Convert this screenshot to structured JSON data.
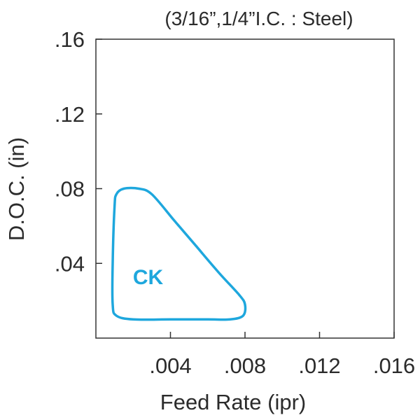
{
  "chart_data": {
    "type": "area",
    "title": "(3/16”,1/4”I.C. : Steel)",
    "xlabel": "Feed Rate (ipr)",
    "ylabel": "D.O.C. (in)",
    "xlim": [
      0,
      0.016
    ],
    "ylim": [
      0,
      0.16
    ],
    "x_ticks": [
      {
        "value": 0.004,
        "label": ".004"
      },
      {
        "value": 0.008,
        "label": ".008"
      },
      {
        "value": 0.012,
        "label": ".012"
      },
      {
        "value": 0.016,
        "label": ".016"
      }
    ],
    "y_ticks": [
      {
        "value": 0.04,
        "label": ".04"
      },
      {
        "value": 0.08,
        "label": ".08"
      },
      {
        "value": 0.12,
        "label": ".12"
      },
      {
        "value": 0.16,
        "label": ".16"
      }
    ],
    "grid": false,
    "series": [
      {
        "name": "CK",
        "color": "#1ea7dd",
        "points": [
          [
            0.001,
            0.07
          ],
          [
            0.0011,
            0.077
          ],
          [
            0.0015,
            0.08
          ],
          [
            0.0023,
            0.08
          ],
          [
            0.003,
            0.077
          ],
          [
            0.0042,
            0.063
          ],
          [
            0.0054,
            0.049
          ],
          [
            0.0066,
            0.035
          ],
          [
            0.0077,
            0.023
          ],
          [
            0.008,
            0.018
          ],
          [
            0.0079,
            0.012
          ],
          [
            0.0072,
            0.01
          ],
          [
            0.006,
            0.01
          ],
          [
            0.004,
            0.01
          ],
          [
            0.002,
            0.01
          ],
          [
            0.0011,
            0.012
          ],
          [
            0.0009,
            0.018
          ],
          [
            0.0009,
            0.04
          ],
          [
            0.001,
            0.07
          ]
        ],
        "label_at": [
          0.0028,
          0.033
        ]
      }
    ]
  }
}
